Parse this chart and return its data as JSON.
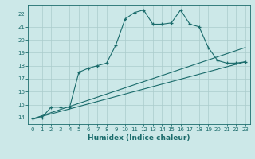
{
  "xlabel": "Humidex (Indice chaleur)",
  "bg_color": "#cce8e8",
  "grid_color": "#aacccc",
  "line_color": "#1a6b6b",
  "x_min": -0.5,
  "x_max": 23.5,
  "y_min": 13.5,
  "y_max": 22.7,
  "yticks": [
    14,
    15,
    16,
    17,
    18,
    19,
    20,
    21,
    22
  ],
  "xticks": [
    0,
    1,
    2,
    3,
    4,
    5,
    6,
    7,
    8,
    9,
    10,
    11,
    12,
    13,
    14,
    15,
    16,
    17,
    18,
    19,
    20,
    21,
    22,
    23
  ],
  "main_x": [
    0,
    1,
    2,
    3,
    4,
    5,
    6,
    7,
    8,
    9,
    10,
    11,
    12,
    13,
    14,
    15,
    16,
    17,
    18,
    19,
    20,
    21,
    22,
    23
  ],
  "main_y": [
    13.9,
    14.0,
    14.8,
    14.8,
    14.8,
    17.5,
    17.8,
    18.0,
    18.2,
    19.6,
    21.6,
    22.1,
    22.3,
    21.2,
    21.2,
    21.3,
    22.3,
    21.2,
    21.0,
    19.4,
    18.4,
    18.2,
    18.2,
    18.3
  ],
  "line2_x": [
    0,
    23
  ],
  "line2_y": [
    13.9,
    19.4
  ],
  "line3_x": [
    0,
    23
  ],
  "line3_y": [
    13.9,
    18.3
  ]
}
